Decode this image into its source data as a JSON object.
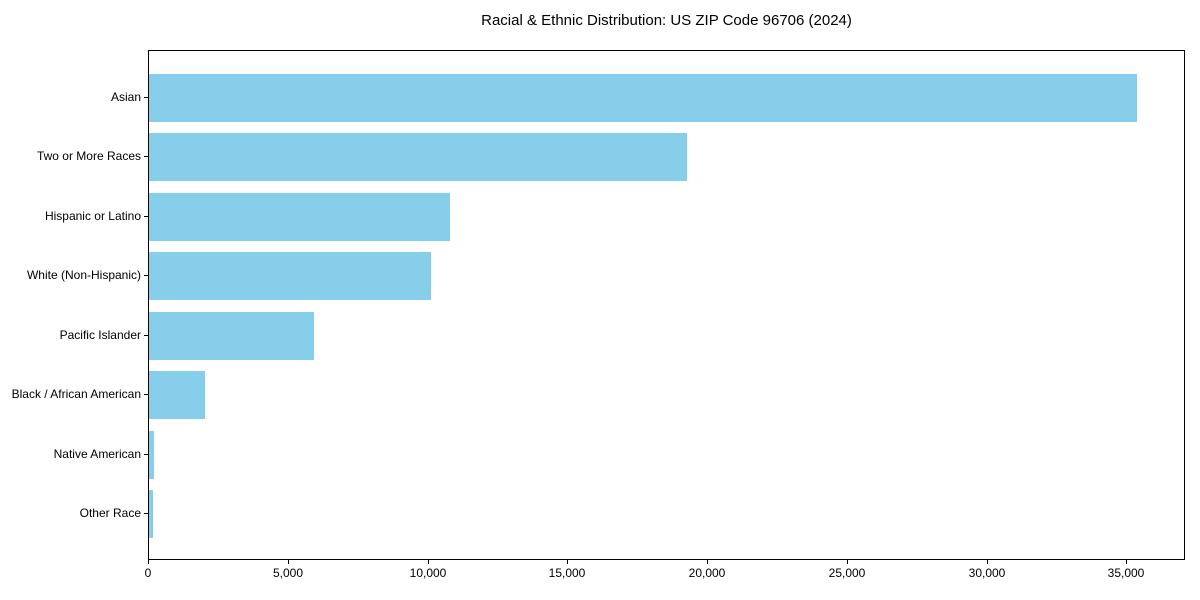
{
  "title": "Racial & Ethnic Distribution: US ZIP Code 96706 (2024)",
  "chart_data": {
    "type": "bar",
    "orientation": "horizontal",
    "title": "Racial & Ethnic Distribution: US ZIP Code 96706 (2024)",
    "xlabel": "",
    "ylabel": "",
    "categories": [
      "Asian",
      "Two or More Races",
      "Hispanic or Latino",
      "White (Non-Hispanic)",
      "Pacific Islander",
      "Black / African American",
      "Native American",
      "Other Race"
    ],
    "values": [
      35350,
      19250,
      10780,
      10100,
      5900,
      2000,
      180,
      140
    ],
    "xlim": [
      0,
      37100
    ],
    "x_ticks": [
      0,
      5000,
      10000,
      15000,
      20000,
      25000,
      30000,
      35000
    ],
    "x_tick_labels": [
      "0",
      "5,000",
      "10,000",
      "15,000",
      "20,000",
      "25,000",
      "30,000",
      "35,000"
    ],
    "bar_color": "#87CEEB",
    "axis_color": "#000000",
    "grid": false,
    "legend": false
  }
}
